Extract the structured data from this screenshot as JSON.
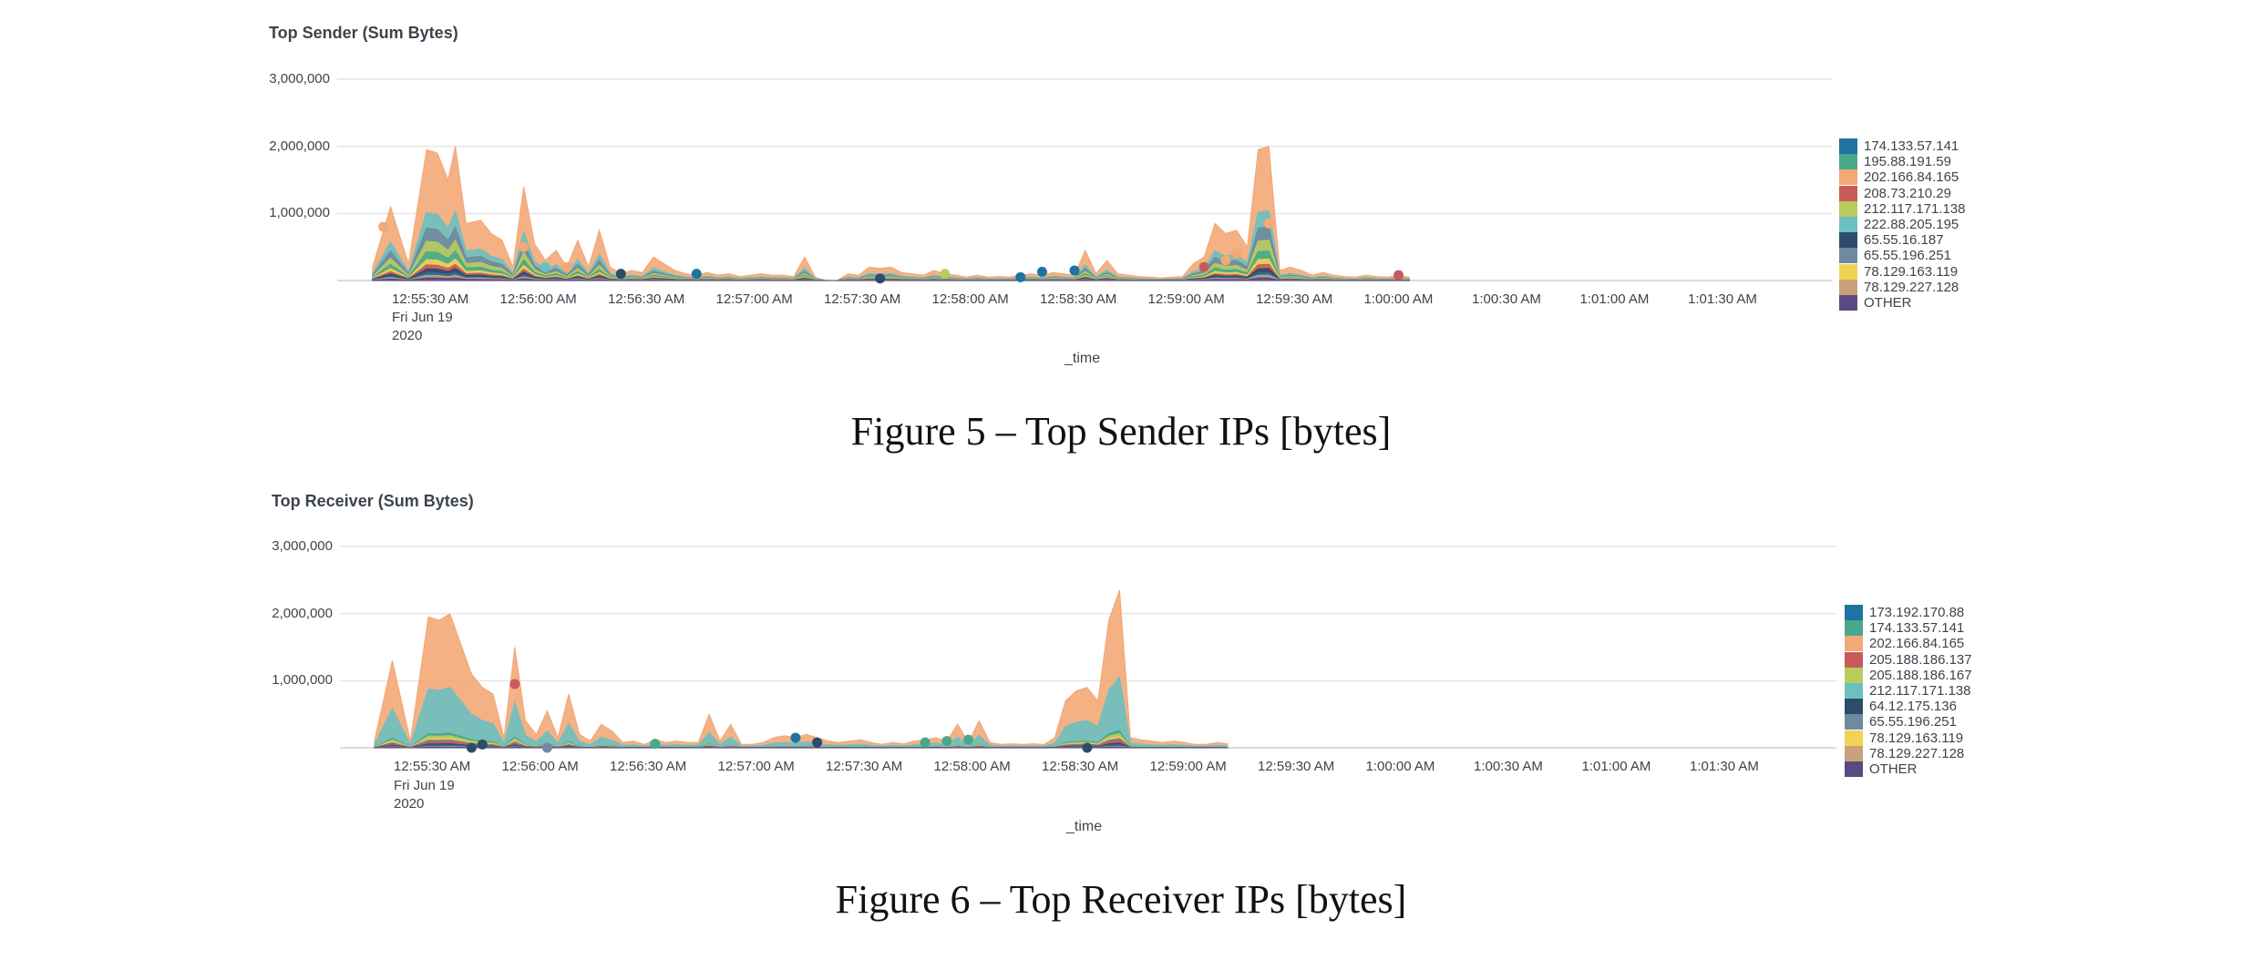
{
  "captions": {
    "figure5": "Figure 5 – Top Sender IPs [bytes]",
    "figure6": "Figure 6 – Top Receiver IPs [bytes]"
  },
  "colors": {
    "palette": [
      "#1e73a0",
      "#4aa88a",
      "#f2a877",
      "#c95a5a",
      "#b8cc5e",
      "#6cc0c0",
      "#2d4b6b",
      "#6f8a9e",
      "#f2d255",
      "#c8a07a",
      "#5a4a82"
    ],
    "grid": "#e6e6e6",
    "text": "#3c444d"
  },
  "chart_data": [
    {
      "type": "area",
      "title": "Top Sender (Sum Bytes)",
      "xlabel": "_time",
      "ylabel": "",
      "ylim": [
        0,
        3000000
      ],
      "yticks": [
        "3,000,000",
        "2,000,000",
        "1,000,000"
      ],
      "xticks": [
        "12:55:30 AM",
        "12:56:00 AM",
        "12:56:30 AM",
        "12:57:00 AM",
        "12:57:30 AM",
        "12:58:00 AM",
        "12:58:30 AM",
        "12:59:00 AM",
        "12:59:30 AM",
        "1:00:00 AM",
        "1:00:30 AM",
        "1:01:00 AM",
        "1:01:30 AM"
      ],
      "xtick_sub": [
        "Fri Jun 19",
        "2020"
      ],
      "legend_position": "right",
      "grid": true,
      "stacked": true,
      "x_seconds_from_12_55_30": [
        -15,
        -10,
        -5,
        0,
        3,
        6,
        9,
        12,
        15,
        18,
        21,
        24,
        27,
        30,
        33,
        36,
        39,
        42,
        45,
        48,
        51,
        54,
        57,
        60,
        63,
        66,
        69,
        72,
        75,
        78,
        81,
        84,
        87,
        90,
        93,
        96,
        99,
        102,
        105,
        108,
        111,
        114,
        117,
        120,
        123,
        126,
        129,
        132,
        135,
        138,
        141,
        144,
        147,
        150,
        153,
        156,
        159,
        162,
        165,
        168,
        171,
        174,
        177,
        180,
        183,
        186,
        189,
        192,
        195,
        198,
        201,
        204,
        207,
        210,
        213,
        216,
        219,
        222,
        225,
        228,
        231,
        234,
        237,
        240,
        243,
        246,
        249,
        252,
        255,
        258,
        261,
        264,
        267,
        270,
        273,
        276,
        279,
        282,
        285,
        288,
        291,
        294,
        297,
        300,
        303,
        306,
        309,
        312,
        315,
        318,
        321,
        324,
        327,
        330,
        333,
        336,
        339,
        342,
        345,
        348,
        351,
        354,
        357,
        360,
        363,
        366,
        369,
        372,
        375,
        378,
        381,
        384,
        387,
        390,
        393,
        396,
        399,
        402,
        405,
        408,
        411,
        414,
        417,
        420,
        423,
        426,
        429,
        432,
        435,
        438,
        441,
        444,
        447,
        450,
        453,
        456
      ],
      "series": [
        {
          "name": "174.133.57.141",
          "values": []
        },
        {
          "name": "195.88.191.59",
          "values": []
        },
        {
          "name": "202.166.84.165",
          "values": []
        },
        {
          "name": "208.73.210.29",
          "values": []
        },
        {
          "name": "212.117.171.138",
          "values": []
        },
        {
          "name": "222.88.205.195",
          "values": []
        },
        {
          "name": "65.55.16.187",
          "values": []
        },
        {
          "name": "65.55.196.251",
          "values": []
        },
        {
          "name": "78.129.163.119",
          "values": []
        },
        {
          "name": "78.129.227.128",
          "values": []
        },
        {
          "name": "OTHER",
          "values": []
        }
      ],
      "total_profile": [
        [
          -15,
          200000
        ],
        [
          -10,
          1100000
        ],
        [
          -5,
          250000
        ],
        [
          0,
          1950000
        ],
        [
          3,
          1900000
        ],
        [
          6,
          1500000
        ],
        [
          8,
          2000000
        ],
        [
          11,
          850000
        ],
        [
          15,
          900000
        ],
        [
          18,
          700000
        ],
        [
          21,
          600000
        ],
        [
          24,
          200000
        ],
        [
          27,
          1400000
        ],
        [
          30,
          550000
        ],
        [
          33,
          300000
        ],
        [
          36,
          450000
        ],
        [
          39,
          200000
        ],
        [
          42,
          600000
        ],
        [
          45,
          200000
        ],
        [
          48,
          750000
        ],
        [
          51,
          200000
        ],
        [
          54,
          100000
        ],
        [
          57,
          150000
        ],
        [
          60,
          120000
        ],
        [
          63,
          350000
        ],
        [
          66,
          250000
        ],
        [
          69,
          150000
        ],
        [
          72,
          100000
        ],
        [
          75,
          80000
        ],
        [
          78,
          120000
        ],
        [
          81,
          80000
        ],
        [
          84,
          100000
        ],
        [
          87,
          60000
        ],
        [
          90,
          80000
        ],
        [
          93,
          100000
        ],
        [
          96,
          80000
        ],
        [
          99,
          80000
        ],
        [
          102,
          60000
        ],
        [
          105,
          350000
        ],
        [
          108,
          50000
        ],
        [
          111,
          0
        ],
        [
          114,
          0
        ],
        [
          117,
          100000
        ],
        [
          120,
          80000
        ],
        [
          123,
          200000
        ],
        [
          126,
          180000
        ],
        [
          129,
          200000
        ],
        [
          132,
          120000
        ],
        [
          135,
          100000
        ],
        [
          138,
          80000
        ],
        [
          141,
          150000
        ],
        [
          144,
          100000
        ],
        [
          147,
          80000
        ],
        [
          150,
          50000
        ],
        [
          153,
          80000
        ],
        [
          156,
          50000
        ],
        [
          159,
          60000
        ],
        [
          162,
          50000
        ],
        [
          165,
          80000
        ],
        [
          168,
          100000
        ],
        [
          171,
          80000
        ],
        [
          174,
          120000
        ],
        [
          177,
          100000
        ],
        [
          180,
          80000
        ],
        [
          183,
          450000
        ],
        [
          186,
          100000
        ],
        [
          189,
          300000
        ],
        [
          192,
          100000
        ],
        [
          195,
          80000
        ],
        [
          198,
          60000
        ],
        [
          201,
          50000
        ],
        [
          204,
          40000
        ],
        [
          207,
          50000
        ],
        [
          210,
          60000
        ],
        [
          213,
          250000
        ],
        [
          216,
          350000
        ],
        [
          219,
          850000
        ],
        [
          222,
          700000
        ],
        [
          225,
          750000
        ],
        [
          228,
          500000
        ],
        [
          231,
          1950000
        ],
        [
          234,
          2000000
        ],
        [
          237,
          150000
        ],
        [
          240,
          200000
        ],
        [
          243,
          150000
        ],
        [
          246,
          80000
        ],
        [
          249,
          120000
        ],
        [
          252,
          80000
        ],
        [
          255,
          60000
        ],
        [
          258,
          50000
        ],
        [
          261,
          80000
        ],
        [
          264,
          60000
        ],
        [
          267,
          50000
        ],
        [
          270,
          80000
        ],
        [
          273,
          50000
        ]
      ],
      "points": [
        {
          "t": -12,
          "v": 800000,
          "series": "202.166.84.165"
        },
        {
          "t": 27,
          "v": 500000,
          "series": "202.166.84.165"
        },
        {
          "t": 33,
          "v": 200000,
          "series": "222.88.205.195"
        },
        {
          "t": 39,
          "v": 200000,
          "series": "202.166.84.165"
        },
        {
          "t": 54,
          "v": 100000,
          "series": "65.55.16.187"
        },
        {
          "t": 75,
          "v": 100000,
          "series": "174.133.57.141"
        },
        {
          "t": 126,
          "v": 30000,
          "series": "65.55.16.187"
        },
        {
          "t": 144,
          "v": 100000,
          "series": "212.117.171.138"
        },
        {
          "t": 165,
          "v": 50000,
          "series": "174.133.57.141"
        },
        {
          "t": 171,
          "v": 130000,
          "series": "174.133.57.141"
        },
        {
          "t": 180,
          "v": 150000,
          "series": "174.133.57.141"
        },
        {
          "t": 216,
          "v": 200000,
          "series": "208.73.210.29"
        },
        {
          "t": 222,
          "v": 300000,
          "series": "202.166.84.165"
        },
        {
          "t": 225,
          "v": 400000,
          "series": "202.166.84.165"
        },
        {
          "t": 234,
          "v": 850000,
          "series": "202.166.84.165"
        },
        {
          "t": 270,
          "v": 80000,
          "series": "208.73.210.29"
        }
      ]
    },
    {
      "type": "area",
      "title": "Top Receiver (Sum Bytes)",
      "xlabel": "_time",
      "ylabel": "",
      "ylim": [
        0,
        3000000
      ],
      "yticks": [
        "3,000,000",
        "2,000,000",
        "1,000,000"
      ],
      "xticks": [
        "12:55:30 AM",
        "12:56:00 AM",
        "12:56:30 AM",
        "12:57:00 AM",
        "12:57:30 AM",
        "12:58:00 AM",
        "12:58:30 AM",
        "12:59:00 AM",
        "12:59:30 AM",
        "1:00:00 AM",
        "1:00:30 AM",
        "1:01:00 AM",
        "1:01:30 AM"
      ],
      "xtick_sub": [
        "Fri Jun 19",
        "2020"
      ],
      "legend_position": "right",
      "grid": true,
      "stacked": true,
      "series": [
        {
          "name": "173.192.170.88",
          "values": []
        },
        {
          "name": "174.133.57.141",
          "values": []
        },
        {
          "name": "202.166.84.165",
          "values": []
        },
        {
          "name": "205.188.186.137",
          "values": []
        },
        {
          "name": "205.188.186.167",
          "values": []
        },
        {
          "name": "212.117.171.138",
          "values": []
        },
        {
          "name": "64.12.175.136",
          "values": []
        },
        {
          "name": "65.55.196.251",
          "values": []
        },
        {
          "name": "78.129.163.119",
          "values": []
        },
        {
          "name": "78.129.227.128",
          "values": []
        },
        {
          "name": "OTHER",
          "values": []
        }
      ],
      "total_profile": [
        [
          -15,
          100000
        ],
        [
          -10,
          1300000
        ],
        [
          -5,
          100000
        ],
        [
          0,
          1950000
        ],
        [
          3,
          1900000
        ],
        [
          6,
          2000000
        ],
        [
          12,
          1100000
        ],
        [
          15,
          900000
        ],
        [
          18,
          800000
        ],
        [
          21,
          150000
        ],
        [
          24,
          1500000
        ],
        [
          27,
          400000
        ],
        [
          30,
          200000
        ],
        [
          33,
          550000
        ],
        [
          36,
          150000
        ],
        [
          39,
          800000
        ],
        [
          42,
          200000
        ],
        [
          45,
          100000
        ],
        [
          48,
          350000
        ],
        [
          51,
          250000
        ],
        [
          54,
          80000
        ],
        [
          57,
          100000
        ],
        [
          60,
          50000
        ],
        [
          63,
          120000
        ],
        [
          66,
          80000
        ],
        [
          69,
          100000
        ],
        [
          72,
          80000
        ],
        [
          75,
          80000
        ],
        [
          78,
          500000
        ],
        [
          81,
          100000
        ],
        [
          84,
          350000
        ],
        [
          87,
          50000
        ],
        [
          90,
          50000
        ],
        [
          93,
          80000
        ],
        [
          96,
          150000
        ],
        [
          99,
          180000
        ],
        [
          102,
          150000
        ],
        [
          105,
          200000
        ],
        [
          108,
          150000
        ],
        [
          111,
          100000
        ],
        [
          114,
          80000
        ],
        [
          117,
          100000
        ],
        [
          120,
          120000
        ],
        [
          123,
          80000
        ],
        [
          126,
          50000
        ],
        [
          129,
          80000
        ],
        [
          132,
          60000
        ],
        [
          135,
          100000
        ],
        [
          138,
          120000
        ],
        [
          141,
          150000
        ],
        [
          144,
          100000
        ],
        [
          147,
          350000
        ],
        [
          150,
          80000
        ],
        [
          153,
          400000
        ],
        [
          156,
          80000
        ],
        [
          159,
          50000
        ],
        [
          162,
          60000
        ],
        [
          165,
          50000
        ],
        [
          168,
          60000
        ],
        [
          171,
          50000
        ],
        [
          174,
          150000
        ],
        [
          177,
          700000
        ],
        [
          180,
          850000
        ],
        [
          183,
          900000
        ],
        [
          186,
          700000
        ],
        [
          189,
          1900000
        ],
        [
          192,
          2350000
        ],
        [
          195,
          150000
        ],
        [
          198,
          120000
        ],
        [
          201,
          100000
        ],
        [
          204,
          80000
        ],
        [
          207,
          100000
        ],
        [
          210,
          80000
        ],
        [
          213,
          50000
        ],
        [
          216,
          50000
        ],
        [
          219,
          80000
        ],
        [
          222,
          60000
        ]
      ],
      "points": [
        {
          "t": 12,
          "v": 0,
          "series": "64.12.175.136"
        },
        {
          "t": 15,
          "v": 50000,
          "series": "64.12.175.136"
        },
        {
          "t": 24,
          "v": 950000,
          "series": "205.188.186.137"
        },
        {
          "t": 33,
          "v": 0,
          "series": "65.55.196.251"
        },
        {
          "t": 63,
          "v": 60000,
          "series": "174.133.57.141"
        },
        {
          "t": 102,
          "v": 150000,
          "series": "173.192.170.88"
        },
        {
          "t": 108,
          "v": 80000,
          "series": "64.12.175.136"
        },
        {
          "t": 138,
          "v": 80000,
          "series": "174.133.57.141"
        },
        {
          "t": 144,
          "v": 100000,
          "series": "174.133.57.141"
        },
        {
          "t": 150,
          "v": 120000,
          "series": "174.133.57.141"
        },
        {
          "t": 183,
          "v": 0,
          "series": "64.12.175.136"
        }
      ]
    }
  ]
}
